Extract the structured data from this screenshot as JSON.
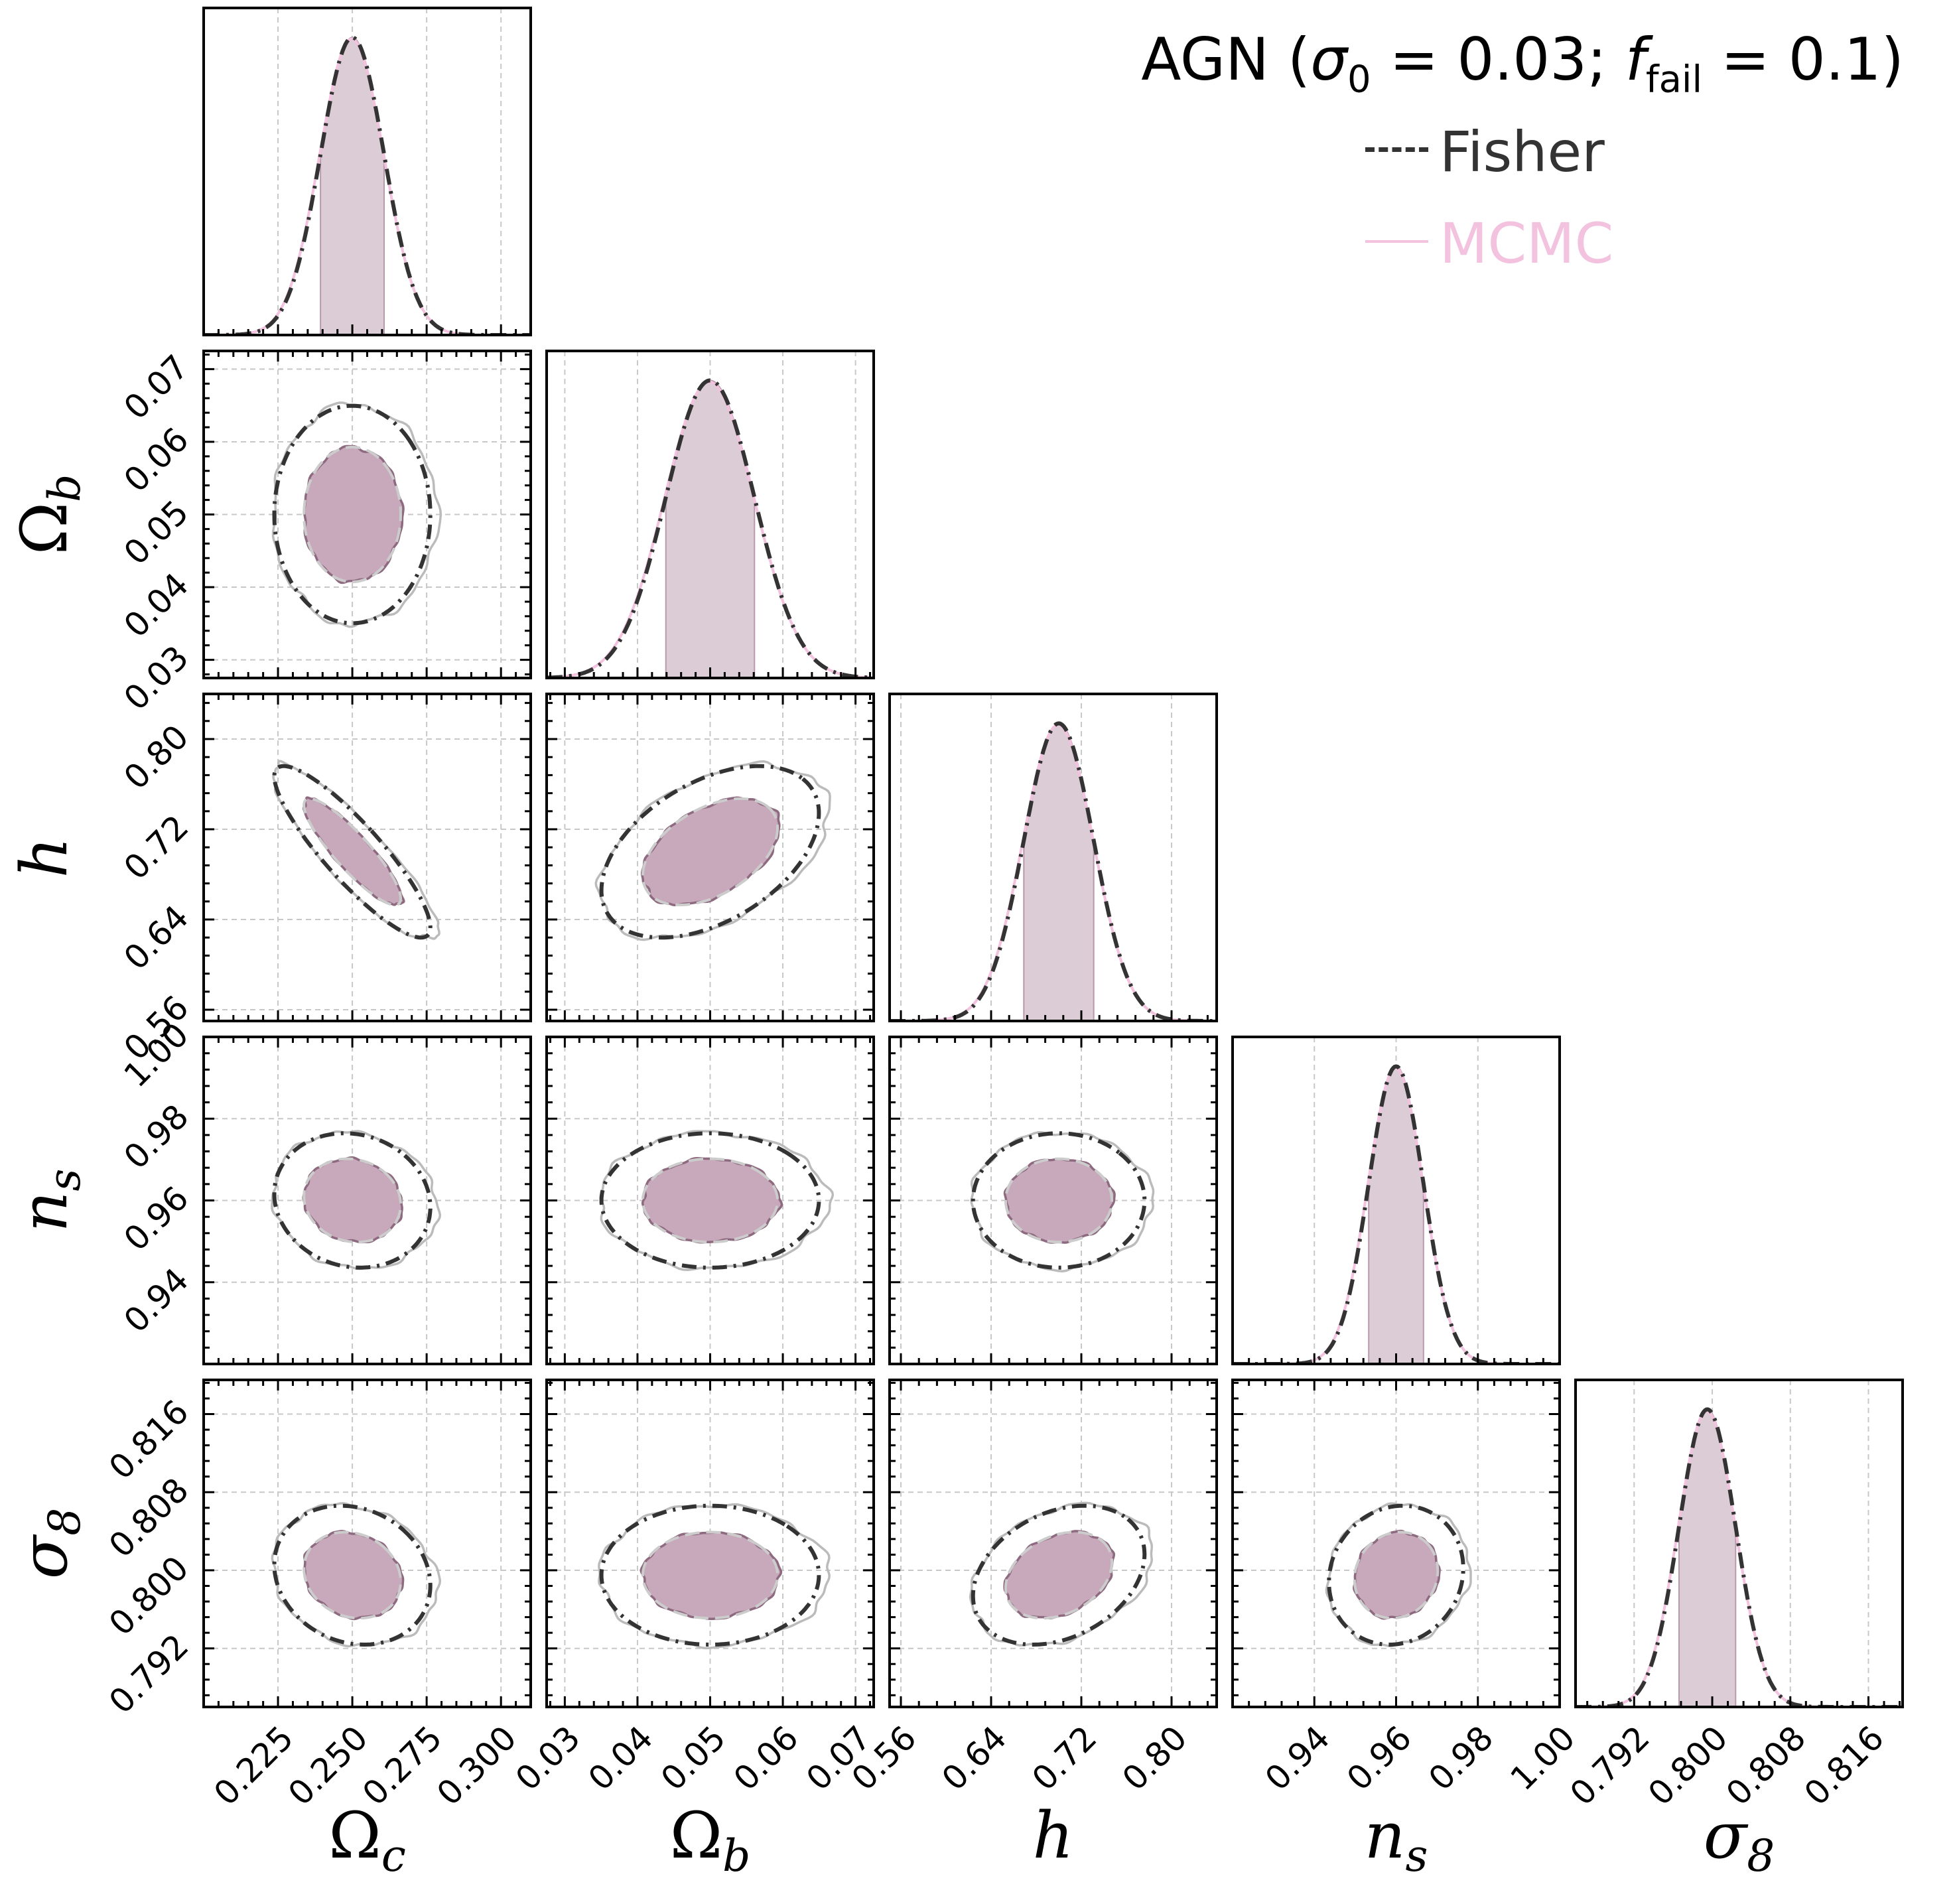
{
  "figure": {
    "legend_title": "AGN (σ0 = 0.03; ffail = 0.1)",
    "legend_title_parts": {
      "prefix": "AGN (",
      "sigma": "σ",
      "sigma_sub": "0",
      "mid": " = 0.03; ",
      "f": "f",
      "f_sub": "fail",
      "suffix": " = 0.1)"
    },
    "legend": [
      {
        "label": "Fisher",
        "style": "dashed",
        "color": "#333333"
      },
      {
        "label": "MCMC",
        "style": "solid",
        "color": "#f2c2df"
      }
    ],
    "colors": {
      "filled_inner": "#c7a9bb",
      "filled_inner_edge": "#8e6a80",
      "marginal_fill": "#dcccd5",
      "fisher_line": "#333333",
      "mcmc_outer": "#bbbbbb",
      "fisher_light": "#cccccc",
      "grid": "#c8c8c8"
    }
  },
  "chart_data": {
    "type": "corner",
    "parameters": [
      {
        "name": "Ωc",
        "label_main": "Ω",
        "label_sub": "c",
        "mean": 0.25,
        "sigma": 0.0107,
        "range": [
          0.2,
          0.31
        ],
        "ticks": [
          0.225,
          0.25,
          0.275,
          0.3
        ],
        "tick_labels": [
          "0.225",
          "0.250",
          "0.275",
          "0.300"
        ]
      },
      {
        "name": "Ωb",
        "label_main": "Ω",
        "label_sub": "b",
        "mean": 0.05,
        "sigma": 0.0061,
        "range": [
          0.0275,
          0.0725
        ],
        "ticks": [
          0.03,
          0.04,
          0.05,
          0.06,
          0.07
        ],
        "tick_labels": [
          "0.03",
          "0.04",
          "0.05",
          "0.06",
          "0.07"
        ]
      },
      {
        "name": "h",
        "label_main": "h",
        "label_sub": "",
        "mean": 0.7,
        "sigma": 0.031,
        "range": [
          0.55,
          0.84
        ],
        "ticks": [
          0.56,
          0.64,
          0.72,
          0.8
        ],
        "tick_labels": [
          "0.56",
          "0.64",
          "0.72",
          "0.80"
        ]
      },
      {
        "name": "ns",
        "label_main": "n",
        "label_sub": "s",
        "mean": 0.96,
        "sigma": 0.0067,
        "range": [
          0.92,
          1.0
        ],
        "ticks": [
          0.94,
          0.96,
          0.98,
          1.0
        ],
        "tick_labels": [
          "0.94",
          "0.96",
          "0.98",
          "1.00"
        ]
      },
      {
        "name": "σ8",
        "label_main": "σ",
        "label_sub": "8",
        "mean": 0.7995,
        "sigma": 0.0029,
        "range": [
          0.786,
          0.8195
        ],
        "ticks": [
          0.792,
          0.8,
          0.808,
          0.816
        ],
        "tick_labels": [
          "0.792",
          "0.800",
          "0.808",
          "0.816"
        ]
      }
    ],
    "correlations": [
      [
        1.0,
        0.0,
        -0.88,
        -0.1,
        -0.15
      ],
      [
        0.0,
        1.0,
        0.45,
        0.0,
        0.0
      ],
      [
        -0.88,
        0.45,
        1.0,
        0.0,
        0.3
      ],
      [
        -0.1,
        0.0,
        0.0,
        1.0,
        0.1
      ],
      [
        -0.15,
        0.0,
        0.3,
        0.1,
        1.0
      ]
    ],
    "contour_levels_sigma": [
      1.52,
      2.49
    ],
    "marginal_band": "68%",
    "grid": true
  }
}
